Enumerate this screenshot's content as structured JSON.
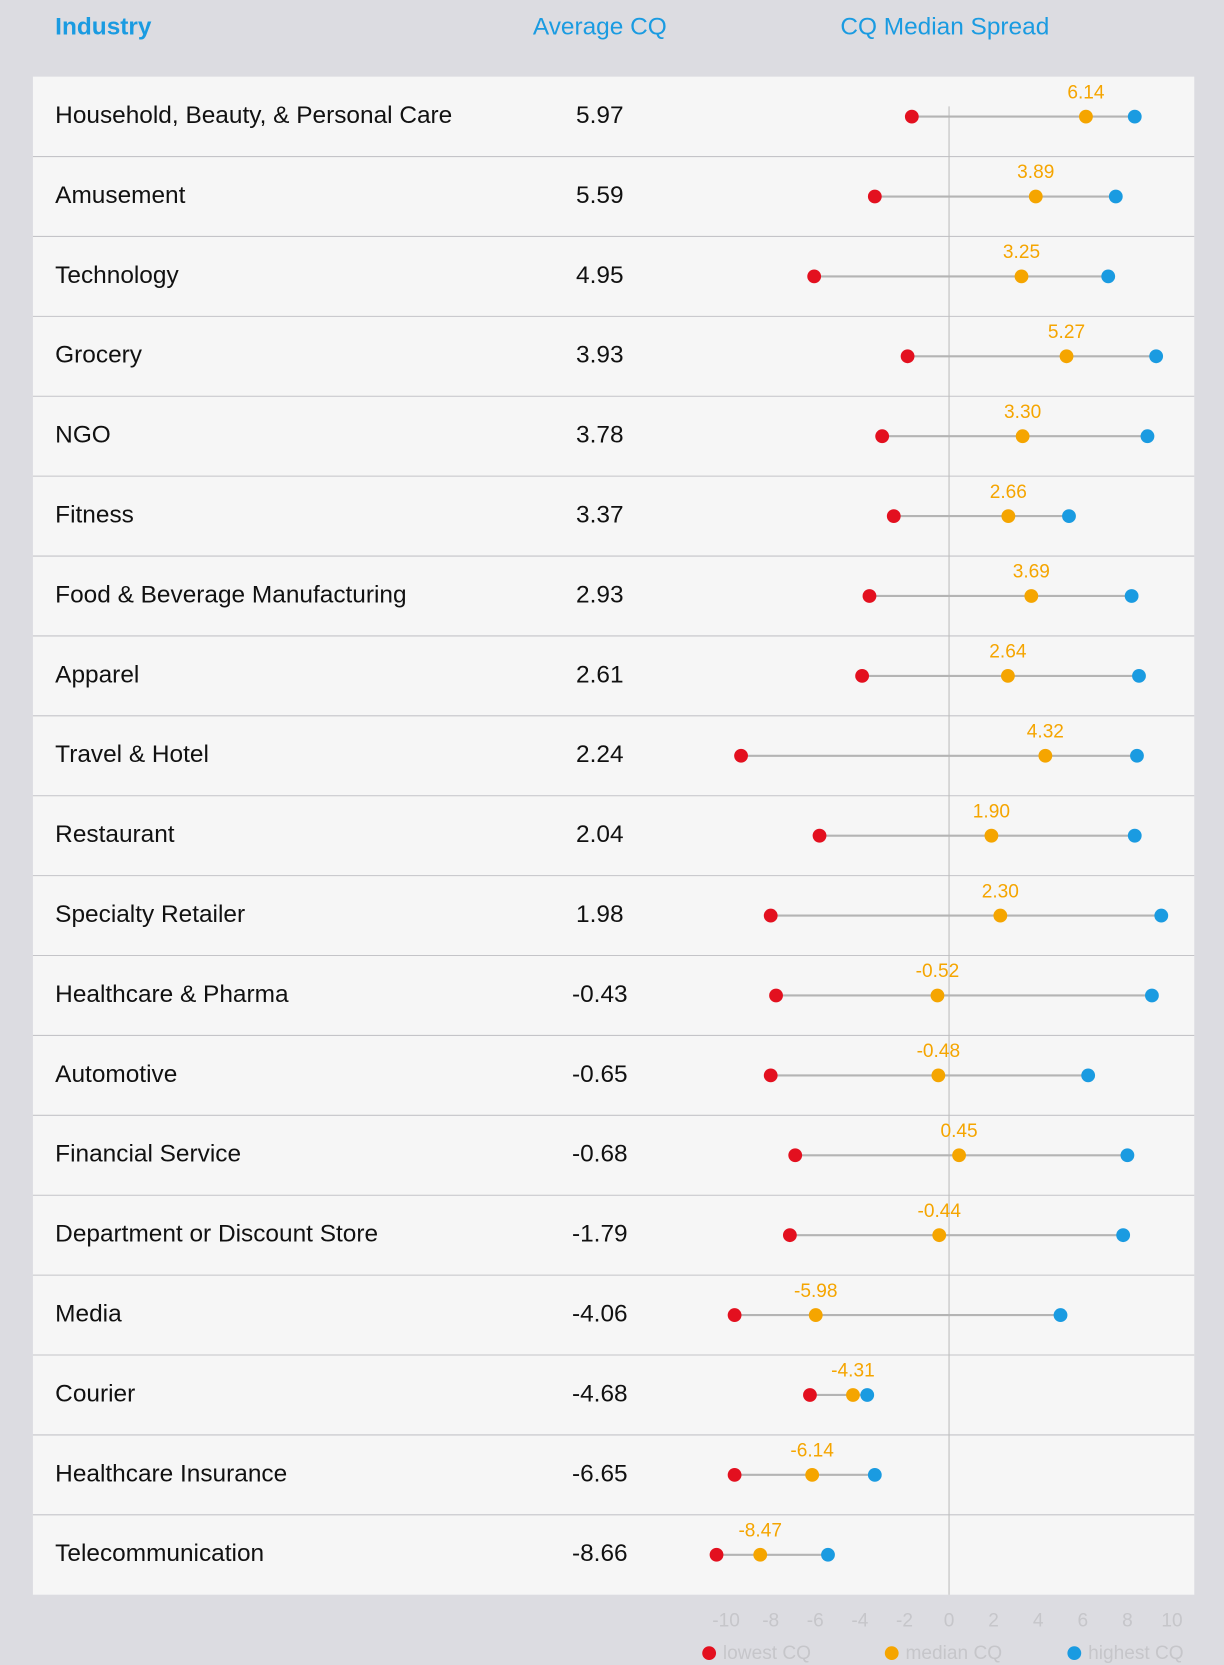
{
  "header": {
    "columns": [
      "Industry",
      "Average CQ",
      "CQ Median Spread"
    ]
  },
  "table": {
    "rows": [
      {
        "industry": "Household, Beauty, & Personal Care",
        "average": 5.97
      },
      {
        "industry": "Amusement",
        "average": 5.59
      },
      {
        "industry": "Technology",
        "average": 4.95
      },
      {
        "industry": "Grocery",
        "average": 3.93
      },
      {
        "industry": "NGO",
        "average": 3.78
      },
      {
        "industry": "Fitness",
        "average": 3.37
      },
      {
        "industry": "Food & Beverage Manufacturing",
        "average": 2.93
      },
      {
        "industry": "Apparel",
        "average": 2.61
      },
      {
        "industry": "Travel & Hotel",
        "average": 2.24
      },
      {
        "industry": "Restaurant",
        "average": 2.04
      },
      {
        "industry": "Specialty Retailer",
        "average": 1.98
      },
      {
        "industry": "Healthcare & Pharma",
        "average": -0.43
      },
      {
        "industry": "Automotive",
        "average": -0.65
      },
      {
        "industry": "Financial Service",
        "average": -0.68
      },
      {
        "industry": "Department or Discount Store",
        "average": -1.79
      },
      {
        "industry": "Media",
        "average": -4.06
      },
      {
        "industry": "Courier",
        "average": -4.68
      },
      {
        "industry": "Healthcare Insurance",
        "average": -6.65
      },
      {
        "industry": "Telecommunication",
        "average": -8.66
      }
    ]
  },
  "chart_data": {
    "type": "dumbbell",
    "series": [
      {
        "name": "lowest CQ",
        "color": "#e3101f",
        "values": [
          -1.67,
          -3.33,
          -6.05,
          -1.86,
          -3.0,
          -2.48,
          -3.57,
          -3.9,
          -9.33,
          -5.81,
          -8.0,
          -7.76,
          -8.0,
          -6.9,
          -7.14,
          -9.62,
          -6.24,
          -9.62,
          -10.43
        ]
      },
      {
        "name": "median CQ",
        "color": "#f5a500",
        "values": [
          6.14,
          3.89,
          3.25,
          5.27,
          3.3,
          2.66,
          3.69,
          2.64,
          4.32,
          1.9,
          2.3,
          -0.52,
          -0.48,
          0.45,
          -0.44,
          -5.98,
          -4.31,
          -6.14,
          -8.47
        ],
        "value_labels": [
          "6.14",
          "3.89",
          "3.25",
          "5.27",
          "3.30",
          "2.66",
          "3.69",
          "2.64",
          "4.32",
          "1.90",
          "2.30",
          "-0.52",
          "-0.48",
          "0.45",
          "-0.44",
          "-5.98",
          "-4.31",
          "-6.14",
          "-8.47"
        ]
      },
      {
        "name": "highest CQ",
        "color": "#1a9be1",
        "values": [
          8.33,
          7.48,
          7.14,
          9.29,
          8.9,
          5.38,
          8.19,
          8.52,
          8.43,
          8.33,
          9.52,
          9.1,
          6.24,
          8.0,
          7.81,
          5.0,
          -3.67,
          -3.33,
          -5.43
        ]
      }
    ],
    "xlim": [
      -11,
      11
    ],
    "xticks": [
      -10,
      -8,
      -6,
      -4,
      -2,
      0,
      2,
      4,
      6,
      8,
      10
    ],
    "zeroline": true,
    "legend": "bottom-right"
  }
}
